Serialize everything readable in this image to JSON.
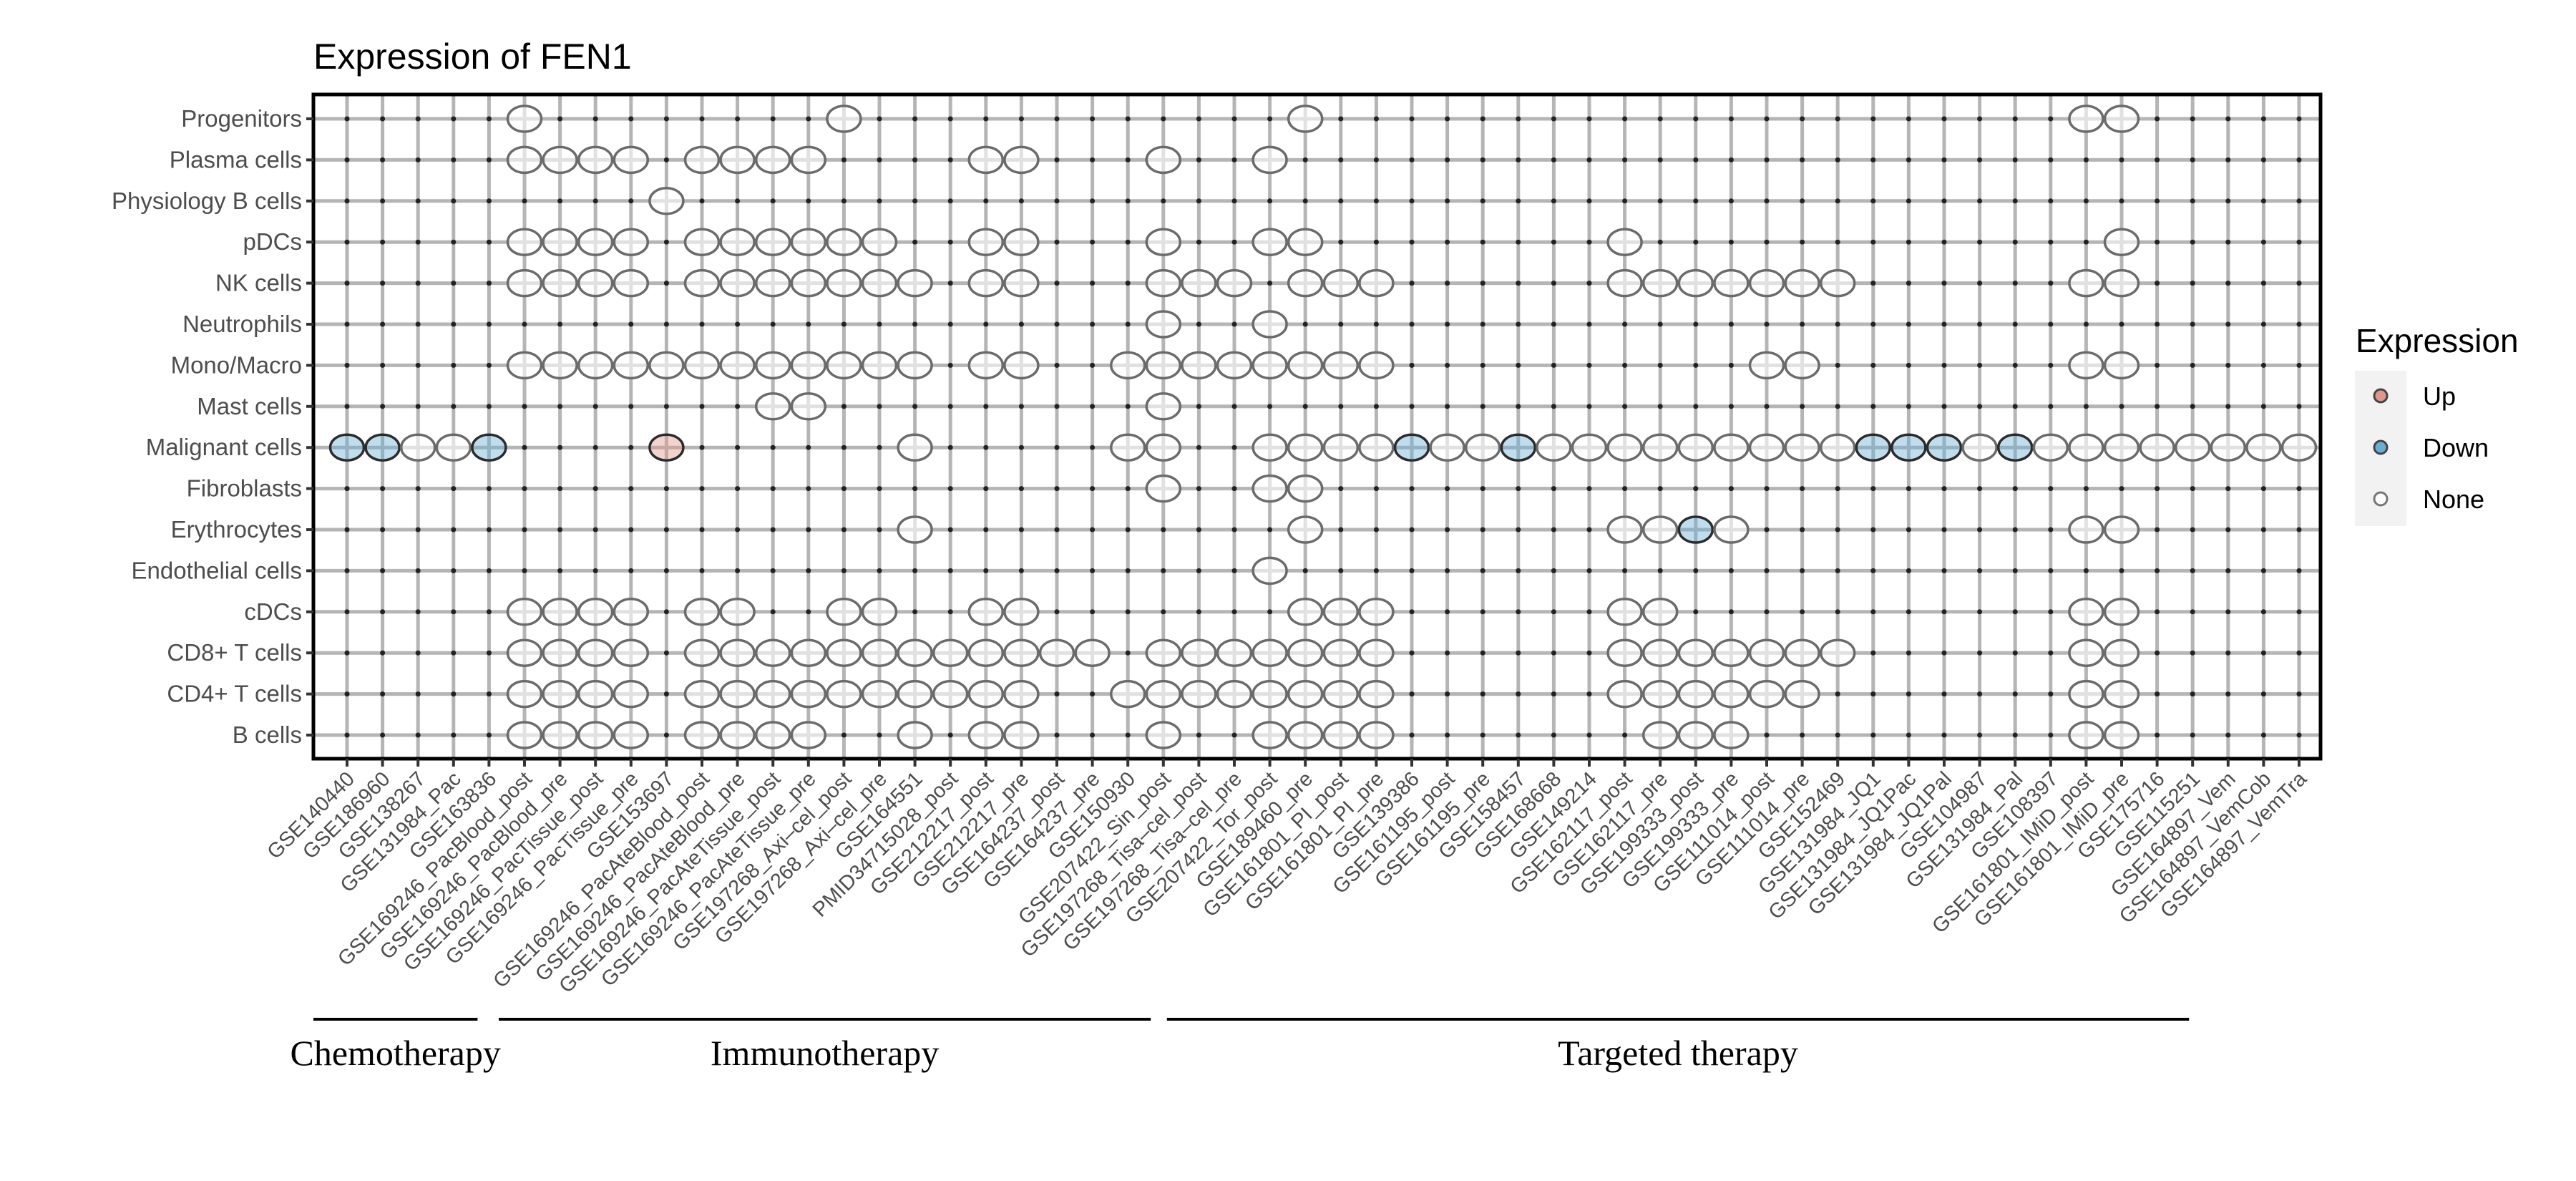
{
  "chart_data": {
    "type": "scatter",
    "subtype": "dot-matrix",
    "title": "Expression of FEN1",
    "xlabel": "",
    "ylabel": "",
    "grid": true,
    "x_categories": [
      "GSE140440",
      "GSE186960",
      "GSE138267",
      "GSE131984_Pac",
      "GSE163836",
      "GSE169246_PacBlood_post",
      "GSE169246_PacBlood_pre",
      "GSE169246_PacTissue_post",
      "GSE169246_PacTissue_pre",
      "GSE153697",
      "GSE169246_PacAteBlood_post",
      "GSE169246_PacAteBlood_pre",
      "GSE169246_PacAteTissue_post",
      "GSE169246_PacAteTissue_pre",
      "GSE197268_Axi–cel_post",
      "GSE197268_Axi–cel_pre",
      "GSE164551",
      "PMID34715028_post",
      "GSE212217_post",
      "GSE212217_pre",
      "GSE164237_post",
      "GSE164237_pre",
      "GSE150930",
      "GSE207422_Sin_post",
      "GSE197268_Tisa–cel_post",
      "GSE197268_Tisa–cel_pre",
      "GSE207422_Tor_post",
      "GSE189460_pre",
      "GSE161801_PI_post",
      "GSE161801_PI_pre",
      "GSE139386",
      "GSE161195_post",
      "GSE161195_pre",
      "GSE158457",
      "GSE168668",
      "GSE149214",
      "GSE162117_post",
      "GSE162117_pre",
      "GSE199333_post",
      "GSE199333_pre",
      "GSE111014_post",
      "GSE111014_pre",
      "GSE152469",
      "GSE131984_JQ1",
      "GSE131984_JQ1Pac",
      "GSE131984_JQ1Pal",
      "GSE104987",
      "GSE131984_Pal",
      "GSE108397",
      "GSE161801_IMiD_post",
      "GSE161801_IMiD_pre",
      "GSE175716",
      "GSE115251",
      "GSE164897_Vem",
      "GSE164897_VemCob",
      "GSE164897_VemTra"
    ],
    "rows": [
      {
        "cell": "Progenitors",
        "None": [
          5,
          14,
          27,
          49,
          50
        ],
        "Down": [],
        "Up": []
      },
      {
        "cell": "Plasma cells",
        "None": [
          5,
          6,
          7,
          8,
          10,
          11,
          12,
          13,
          18,
          19,
          23,
          26
        ],
        "Down": [],
        "Up": []
      },
      {
        "cell": "Physiology B cells",
        "None": [
          9
        ],
        "Down": [],
        "Up": []
      },
      {
        "cell": "pDCs",
        "None": [
          5,
          6,
          7,
          8,
          10,
          11,
          12,
          13,
          14,
          15,
          18,
          19,
          23,
          26,
          27,
          36,
          50
        ],
        "Down": [],
        "Up": []
      },
      {
        "cell": "NK cells",
        "None": [
          5,
          6,
          7,
          8,
          10,
          11,
          12,
          13,
          14,
          15,
          16,
          18,
          19,
          23,
          24,
          25,
          27,
          28,
          29,
          36,
          37,
          38,
          39,
          40,
          41,
          42,
          49,
          50
        ],
        "Down": [],
        "Up": []
      },
      {
        "cell": "Neutrophils",
        "None": [
          23,
          26
        ],
        "Down": [],
        "Up": []
      },
      {
        "cell": "Mono/Macro",
        "None": [
          5,
          6,
          7,
          8,
          9,
          10,
          11,
          12,
          13,
          14,
          15,
          16,
          18,
          19,
          22,
          23,
          24,
          25,
          26,
          27,
          28,
          29,
          40,
          41,
          49,
          50
        ],
        "Down": [],
        "Up": []
      },
      {
        "cell": "Mast cells",
        "None": [
          12,
          13,
          23
        ],
        "Down": [],
        "Up": []
      },
      {
        "cell": "Malignant cells",
        "None": [
          2,
          3,
          16,
          22,
          23,
          26,
          27,
          28,
          29,
          31,
          32,
          34,
          35,
          36,
          37,
          38,
          39,
          40,
          41,
          42,
          46,
          48,
          49,
          50,
          51,
          52,
          53,
          54,
          55
        ],
        "Down": [
          0,
          1,
          4,
          30,
          33,
          43,
          44,
          45,
          47
        ],
        "Up": [
          9
        ]
      },
      {
        "cell": "Fibroblasts",
        "None": [
          23,
          26,
          27
        ],
        "Down": [],
        "Up": []
      },
      {
        "cell": "Erythrocytes",
        "None": [
          16,
          27,
          36,
          37,
          39,
          49,
          50
        ],
        "Down": [
          38
        ],
        "Up": []
      },
      {
        "cell": "Endothelial cells",
        "None": [
          26
        ],
        "Down": [],
        "Up": []
      },
      {
        "cell": "cDCs",
        "None": [
          5,
          6,
          7,
          8,
          10,
          11,
          14,
          15,
          18,
          19,
          27,
          28,
          29,
          36,
          37,
          49,
          50
        ],
        "Down": [],
        "Up": []
      },
      {
        "cell": "CD8+ T cells",
        "None": [
          5,
          6,
          7,
          8,
          10,
          11,
          12,
          13,
          14,
          15,
          16,
          17,
          18,
          19,
          20,
          21,
          23,
          24,
          25,
          26,
          27,
          28,
          29,
          36,
          37,
          38,
          39,
          40,
          41,
          42,
          49,
          50
        ],
        "Down": [],
        "Up": []
      },
      {
        "cell": "CD4+ T cells",
        "None": [
          5,
          6,
          7,
          8,
          10,
          11,
          12,
          13,
          14,
          15,
          16,
          17,
          18,
          19,
          22,
          23,
          24,
          25,
          26,
          27,
          28,
          29,
          36,
          37,
          38,
          39,
          40,
          41,
          49,
          50
        ],
        "Down": [],
        "Up": []
      },
      {
        "cell": "B cells",
        "None": [
          5,
          6,
          7,
          8,
          10,
          11,
          12,
          13,
          16,
          18,
          19,
          23,
          26,
          27,
          28,
          29,
          37,
          38,
          39,
          49,
          50
        ],
        "Down": [],
        "Up": []
      }
    ],
    "legend": {
      "title": "Expression",
      "position": "right",
      "entries": [
        {
          "label": "Up",
          "color": "#e0968b"
        },
        {
          "label": "Down",
          "color": "#6aaed6"
        },
        {
          "label": "None",
          "color": "#ffffff"
        }
      ]
    },
    "groups": [
      {
        "label": "Chemotherapy",
        "start": 0,
        "end": 4
      },
      {
        "label": "Immunotherapy",
        "start": 5,
        "end": 22
      },
      {
        "label": "Targeted therapy",
        "start": 23,
        "end": 52
      }
    ]
  }
}
